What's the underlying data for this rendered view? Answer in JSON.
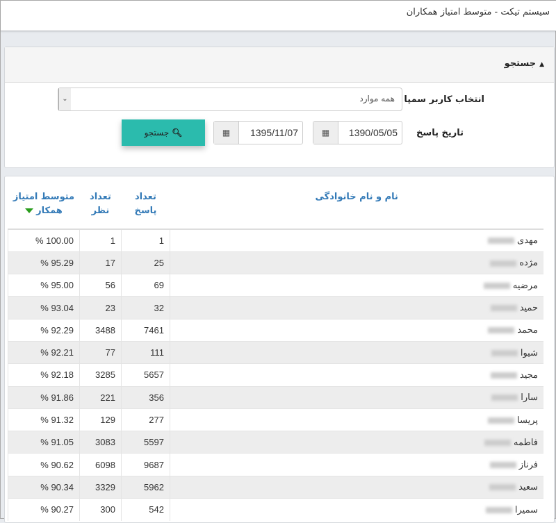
{
  "header": {
    "title": "سیستم تیکت - متوسط امتیاز همکاران"
  },
  "search_panel": {
    "title": "جستجو",
    "user_label": "انتخاب کاربر سمپا",
    "user_select_value": "همه موارد",
    "date_label": "تاریخ پاسخ",
    "date_from": "1390/05/05",
    "date_to": "1395/11/07",
    "search_button": "جستجو"
  },
  "table": {
    "columns": {
      "name": "نام و نام خانوادگی",
      "answers_1": "تعداد",
      "answers_2": "پاسخ",
      "views_1": "تعداد",
      "views_2": "نظر",
      "avg_1": "متوسط امتیاز",
      "avg_2": "همکار"
    },
    "sort_color": "#2a9d1d",
    "rows": [
      {
        "name": "مهدی",
        "answers": "1",
        "views": "1",
        "avg": "% 100.00"
      },
      {
        "name": "مژده",
        "answers": "25",
        "views": "17",
        "avg": "% 95.29"
      },
      {
        "name": "مرضیه",
        "answers": "69",
        "views": "56",
        "avg": "% 95.00"
      },
      {
        "name": "حمید",
        "answers": "32",
        "views": "23",
        "avg": "% 93.04"
      },
      {
        "name": "محمد",
        "answers": "7461",
        "views": "3488",
        "avg": "% 92.29"
      },
      {
        "name": "شیوا",
        "answers": "111",
        "views": "77",
        "avg": "% 92.21"
      },
      {
        "name": "مجید",
        "answers": "5657",
        "views": "3285",
        "avg": "% 92.18"
      },
      {
        "name": "سارا",
        "answers": "356",
        "views": "221",
        "avg": "% 91.86"
      },
      {
        "name": "پریسا",
        "answers": "277",
        "views": "129",
        "avg": "% 91.32"
      },
      {
        "name": "فاطمه",
        "answers": "5597",
        "views": "3083",
        "avg": "% 91.05"
      },
      {
        "name": "فرناز",
        "answers": "9687",
        "views": "6098",
        "avg": "% 90.62"
      },
      {
        "name": "سعید",
        "answers": "5962",
        "views": "3329",
        "avg": "% 90.34"
      },
      {
        "name": "سمیرا",
        "answers": "542",
        "views": "300",
        "avg": "% 90.27"
      }
    ]
  }
}
